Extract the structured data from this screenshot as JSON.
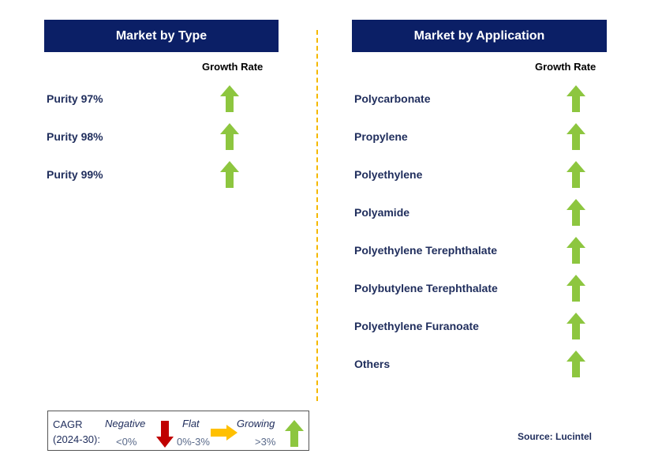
{
  "left": {
    "title": "Market by Type",
    "growth_label": "Growth Rate",
    "items": [
      {
        "label": "Purity 97%",
        "trend": "growing"
      },
      {
        "label": "Purity 98%",
        "trend": "growing"
      },
      {
        "label": "Purity 99%",
        "trend": "growing"
      }
    ]
  },
  "right": {
    "title": "Market by Application",
    "growth_label": "Growth Rate",
    "items": [
      {
        "label": "Polycarbonate",
        "trend": "growing"
      },
      {
        "label": "Propylene",
        "trend": "growing"
      },
      {
        "label": "Polyethylene",
        "trend": "growing"
      },
      {
        "label": "Polyamide",
        "trend": "growing"
      },
      {
        "label": "Polyethylene Terephthalate",
        "trend": "growing"
      },
      {
        "label": "Polybutylene Terephthalate",
        "trend": "growing"
      },
      {
        "label": "Polyethylene Furanoate",
        "trend": "growing"
      },
      {
        "label": "Others",
        "trend": "growing"
      }
    ]
  },
  "legend": {
    "cagr_line1": "CAGR",
    "cagr_line2": "(2024-30):",
    "negative_label": "Negative",
    "negative_range": "<0%",
    "flat_label": "Flat",
    "flat_range": "0%-3%",
    "growing_label": "Growing",
    "growing_range": ">3%"
  },
  "source": "Source: Lucintel",
  "colors": {
    "header_bg": "#0b1f66",
    "growing_arrow": "#8dc63f",
    "negative_arrow": "#c00000",
    "flat_arrow": "#ffc000",
    "divider": "#f5b800"
  }
}
